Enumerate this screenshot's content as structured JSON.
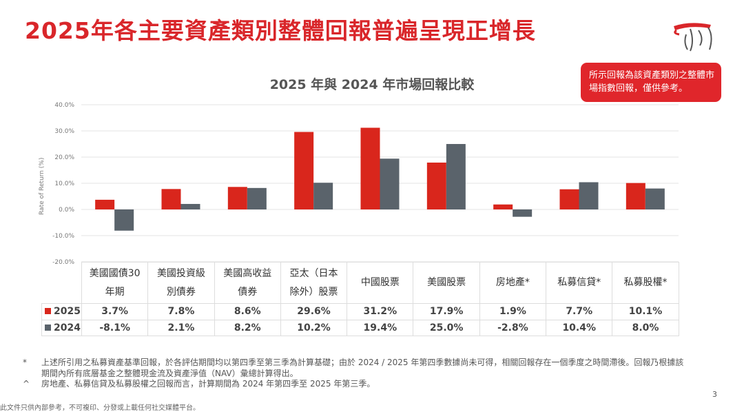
{
  "header": {
    "title": "2025年各主要資產類別整體回報普遍呈現正增長",
    "note": "所示回報為該資產類別之整體市場指數回報，僅供參考。"
  },
  "chart_data": {
    "type": "bar",
    "title": "2025 年與 2024 年市場回報比較",
    "ylabel": "Rate of Return (%)",
    "ylim": [
      -20,
      40
    ],
    "yticks": [
      "-20.0%",
      "-10.0%",
      "0.0%",
      "10.0%",
      "20.0%",
      "30.0%",
      "40.0%"
    ],
    "grid": true,
    "legend": "table-left",
    "categories": [
      "美國國債30年期",
      "美國投資級別債券",
      "美國高收益債券",
      "亞太（日本除外）股票",
      "中國股票",
      "美國股票",
      "房地產*",
      "私募信貸*",
      "私募股權*"
    ],
    "series": [
      {
        "name": "2025",
        "color": "#d9261c",
        "values": [
          3.7,
          7.8,
          8.6,
          29.6,
          31.2,
          17.9,
          1.9,
          7.7,
          10.1
        ],
        "labels": [
          "3.7%",
          "7.8%",
          "8.6%",
          "29.6%",
          "31.2%",
          "17.9%",
          "1.9%",
          "7.7%",
          "10.1%"
        ]
      },
      {
        "name": "2024",
        "color": "#5a636b",
        "values": [
          -8.1,
          2.1,
          8.2,
          10.2,
          19.4,
          25.0,
          -2.8,
          10.4,
          8.0
        ],
        "labels": [
          "-8.1%",
          "2.1%",
          "8.2%",
          "10.2%",
          "19.4%",
          "25.0%",
          "-2.8%",
          "10.4%",
          "8.0%"
        ]
      }
    ]
  },
  "footnotes": [
    {
      "mark": "*",
      "text": "上述所引用之私募資產基準回報，於各評估期間均以第四季至第三季為計算基礎；由於 2024 / 2025 年第四季數據尚未可得，相關回報存在一個季度之時間滯後。回報乃根據該期間內所有底層基金之整體現金流及資產淨值（NAV）彙總計算得出。"
    },
    {
      "mark": "^",
      "text": "房地產、私募信貸及私募股權之回報而言，計算期間為 2024 年第四季至 2025 年第三季。"
    }
  ],
  "page_number": "3",
  "confidential": "此文件只供內部參考，不可複印、分發或上載任何社交媒體平台。"
}
